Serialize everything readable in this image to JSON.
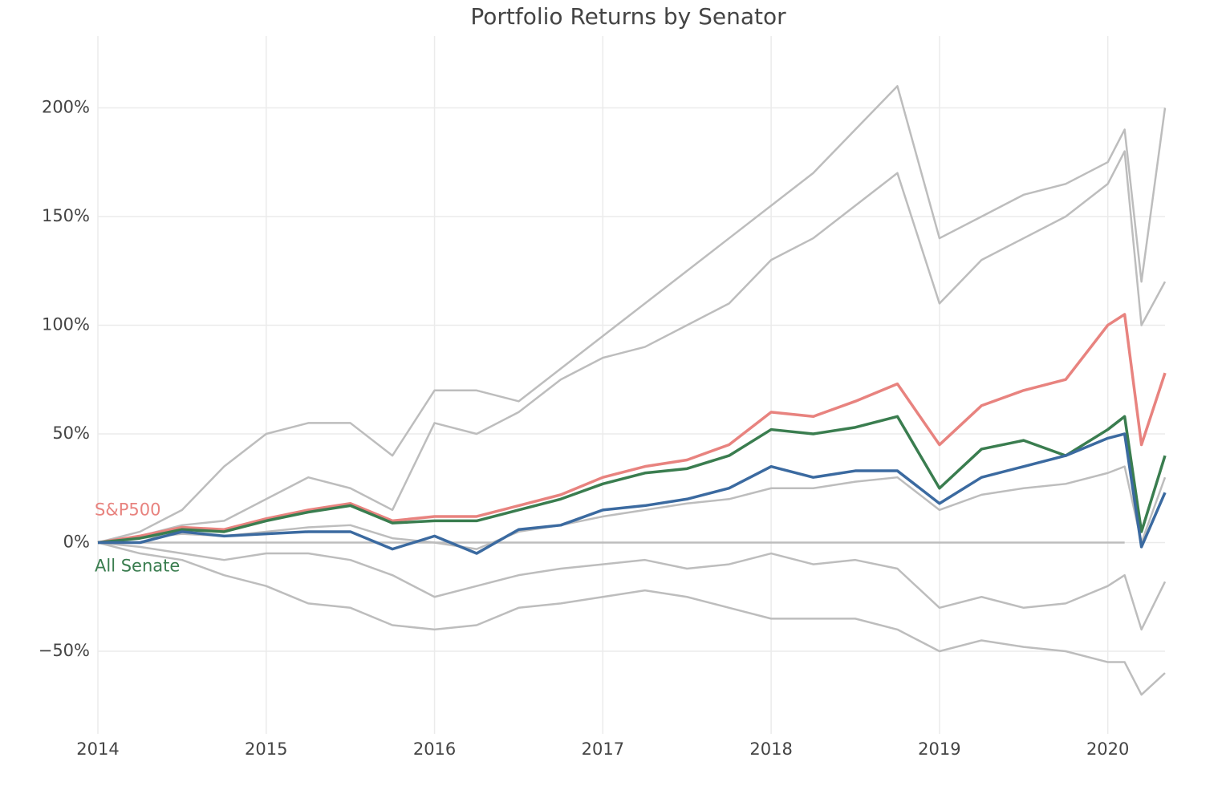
{
  "chart_data": {
    "type": "line",
    "title": "Portfolio Returns by Senator",
    "x": [
      2014,
      2014.25,
      2014.5,
      2014.75,
      2015,
      2015.25,
      2015.5,
      2015.75,
      2016,
      2016.25,
      2016.5,
      2016.75,
      2017,
      2017.25,
      2017.5,
      2017.75,
      2018,
      2018.25,
      2018.5,
      2018.75,
      2019,
      2019.25,
      2019.5,
      2019.75,
      2020,
      2020.1,
      2020.2,
      2020.34
    ],
    "xlim": [
      2014,
      2020.34
    ],
    "xticks": [
      2014,
      2015,
      2016,
      2017,
      2018,
      2019,
      2020
    ],
    "ylim": [
      -88,
      233
    ],
    "yticks": [
      {
        "value": -50,
        "label": "−50%"
      },
      {
        "value": 0,
        "label": "0%"
      },
      {
        "value": 50,
        "label": "50%"
      },
      {
        "value": 100,
        "label": "100%"
      },
      {
        "value": 150,
        "label": "150%"
      },
      {
        "value": 200,
        "label": "200%"
      }
    ],
    "grid": true,
    "series": [
      {
        "color": "#bdbdbd",
        "values": [
          0,
          5,
          15,
          35,
          50,
          55,
          55,
          40,
          70,
          70,
          65,
          80,
          95,
          110,
          125,
          140,
          155,
          170,
          190,
          210,
          140,
          150,
          160,
          165,
          175,
          190,
          120,
          200
        ]
      },
      {
        "color": "#bdbdbd",
        "values": [
          0,
          3,
          8,
          10,
          20,
          30,
          25,
          15,
          55,
          50,
          60,
          75,
          85,
          90,
          100,
          110,
          130,
          140,
          155,
          170,
          110,
          130,
          140,
          150,
          165,
          180,
          100,
          120
        ]
      },
      {
        "color": "#bdbdbd",
        "values": [
          0,
          -5,
          -8,
          -15,
          -20,
          -28,
          -30,
          -38,
          -40,
          -38,
          -30,
          -28,
          -25,
          -22,
          -25,
          -30,
          -35,
          -35,
          -35,
          -40,
          -50,
          -45,
          -48,
          -50,
          -55,
          -55,
          -70,
          -60
        ]
      },
      {
        "color": "#bdbdbd",
        "values": [
          0,
          -2,
          -5,
          -8,
          -5,
          -5,
          -8,
          -15,
          -25,
          -20,
          -15,
          -12,
          -10,
          -8,
          -12,
          -10,
          -5,
          -10,
          -8,
          -12,
          -30,
          -25,
          -30,
          -28,
          -20,
          -15,
          -40,
          -18
        ]
      },
      {
        "color": "#bdbdbd",
        "values": [
          0,
          0,
          0,
          0,
          0,
          0,
          0,
          0,
          0,
          0,
          0,
          0,
          0,
          0,
          0,
          0,
          0,
          0,
          0,
          0,
          0,
          0,
          0,
          0,
          0,
          0,
          null,
          null
        ]
      },
      {
        "color": "#bdbdbd",
        "values": [
          0,
          2,
          4,
          3,
          5,
          7,
          8,
          2,
          0,
          -3,
          5,
          8,
          12,
          15,
          18,
          20,
          25,
          25,
          28,
          30,
          15,
          22,
          25,
          27,
          32,
          35,
          0,
          30
        ]
      },
      {
        "name": "S&P500",
        "color": "#e8837f",
        "values": [
          0,
          3,
          7,
          6,
          11,
          15,
          18,
          10,
          12,
          12,
          17,
          22,
          30,
          35,
          38,
          45,
          60,
          58,
          65,
          73,
          45,
          63,
          70,
          75,
          100,
          105,
          45,
          78
        ]
      },
      {
        "name": "All Senate",
        "color": "#3a7d4f",
        "values": [
          0,
          2,
          6,
          5,
          10,
          14,
          17,
          9,
          10,
          10,
          15,
          20,
          27,
          32,
          34,
          40,
          52,
          50,
          53,
          58,
          25,
          43,
          47,
          40,
          52,
          58,
          5,
          40
        ]
      },
      {
        "color": "#3b6aa0",
        "values": [
          0,
          0,
          5,
          3,
          4,
          5,
          5,
          -3,
          3,
          -5,
          6,
          8,
          15,
          17,
          20,
          25,
          35,
          30,
          33,
          33,
          18,
          30,
          35,
          40,
          48,
          50,
          -2,
          23
        ]
      }
    ]
  }
}
